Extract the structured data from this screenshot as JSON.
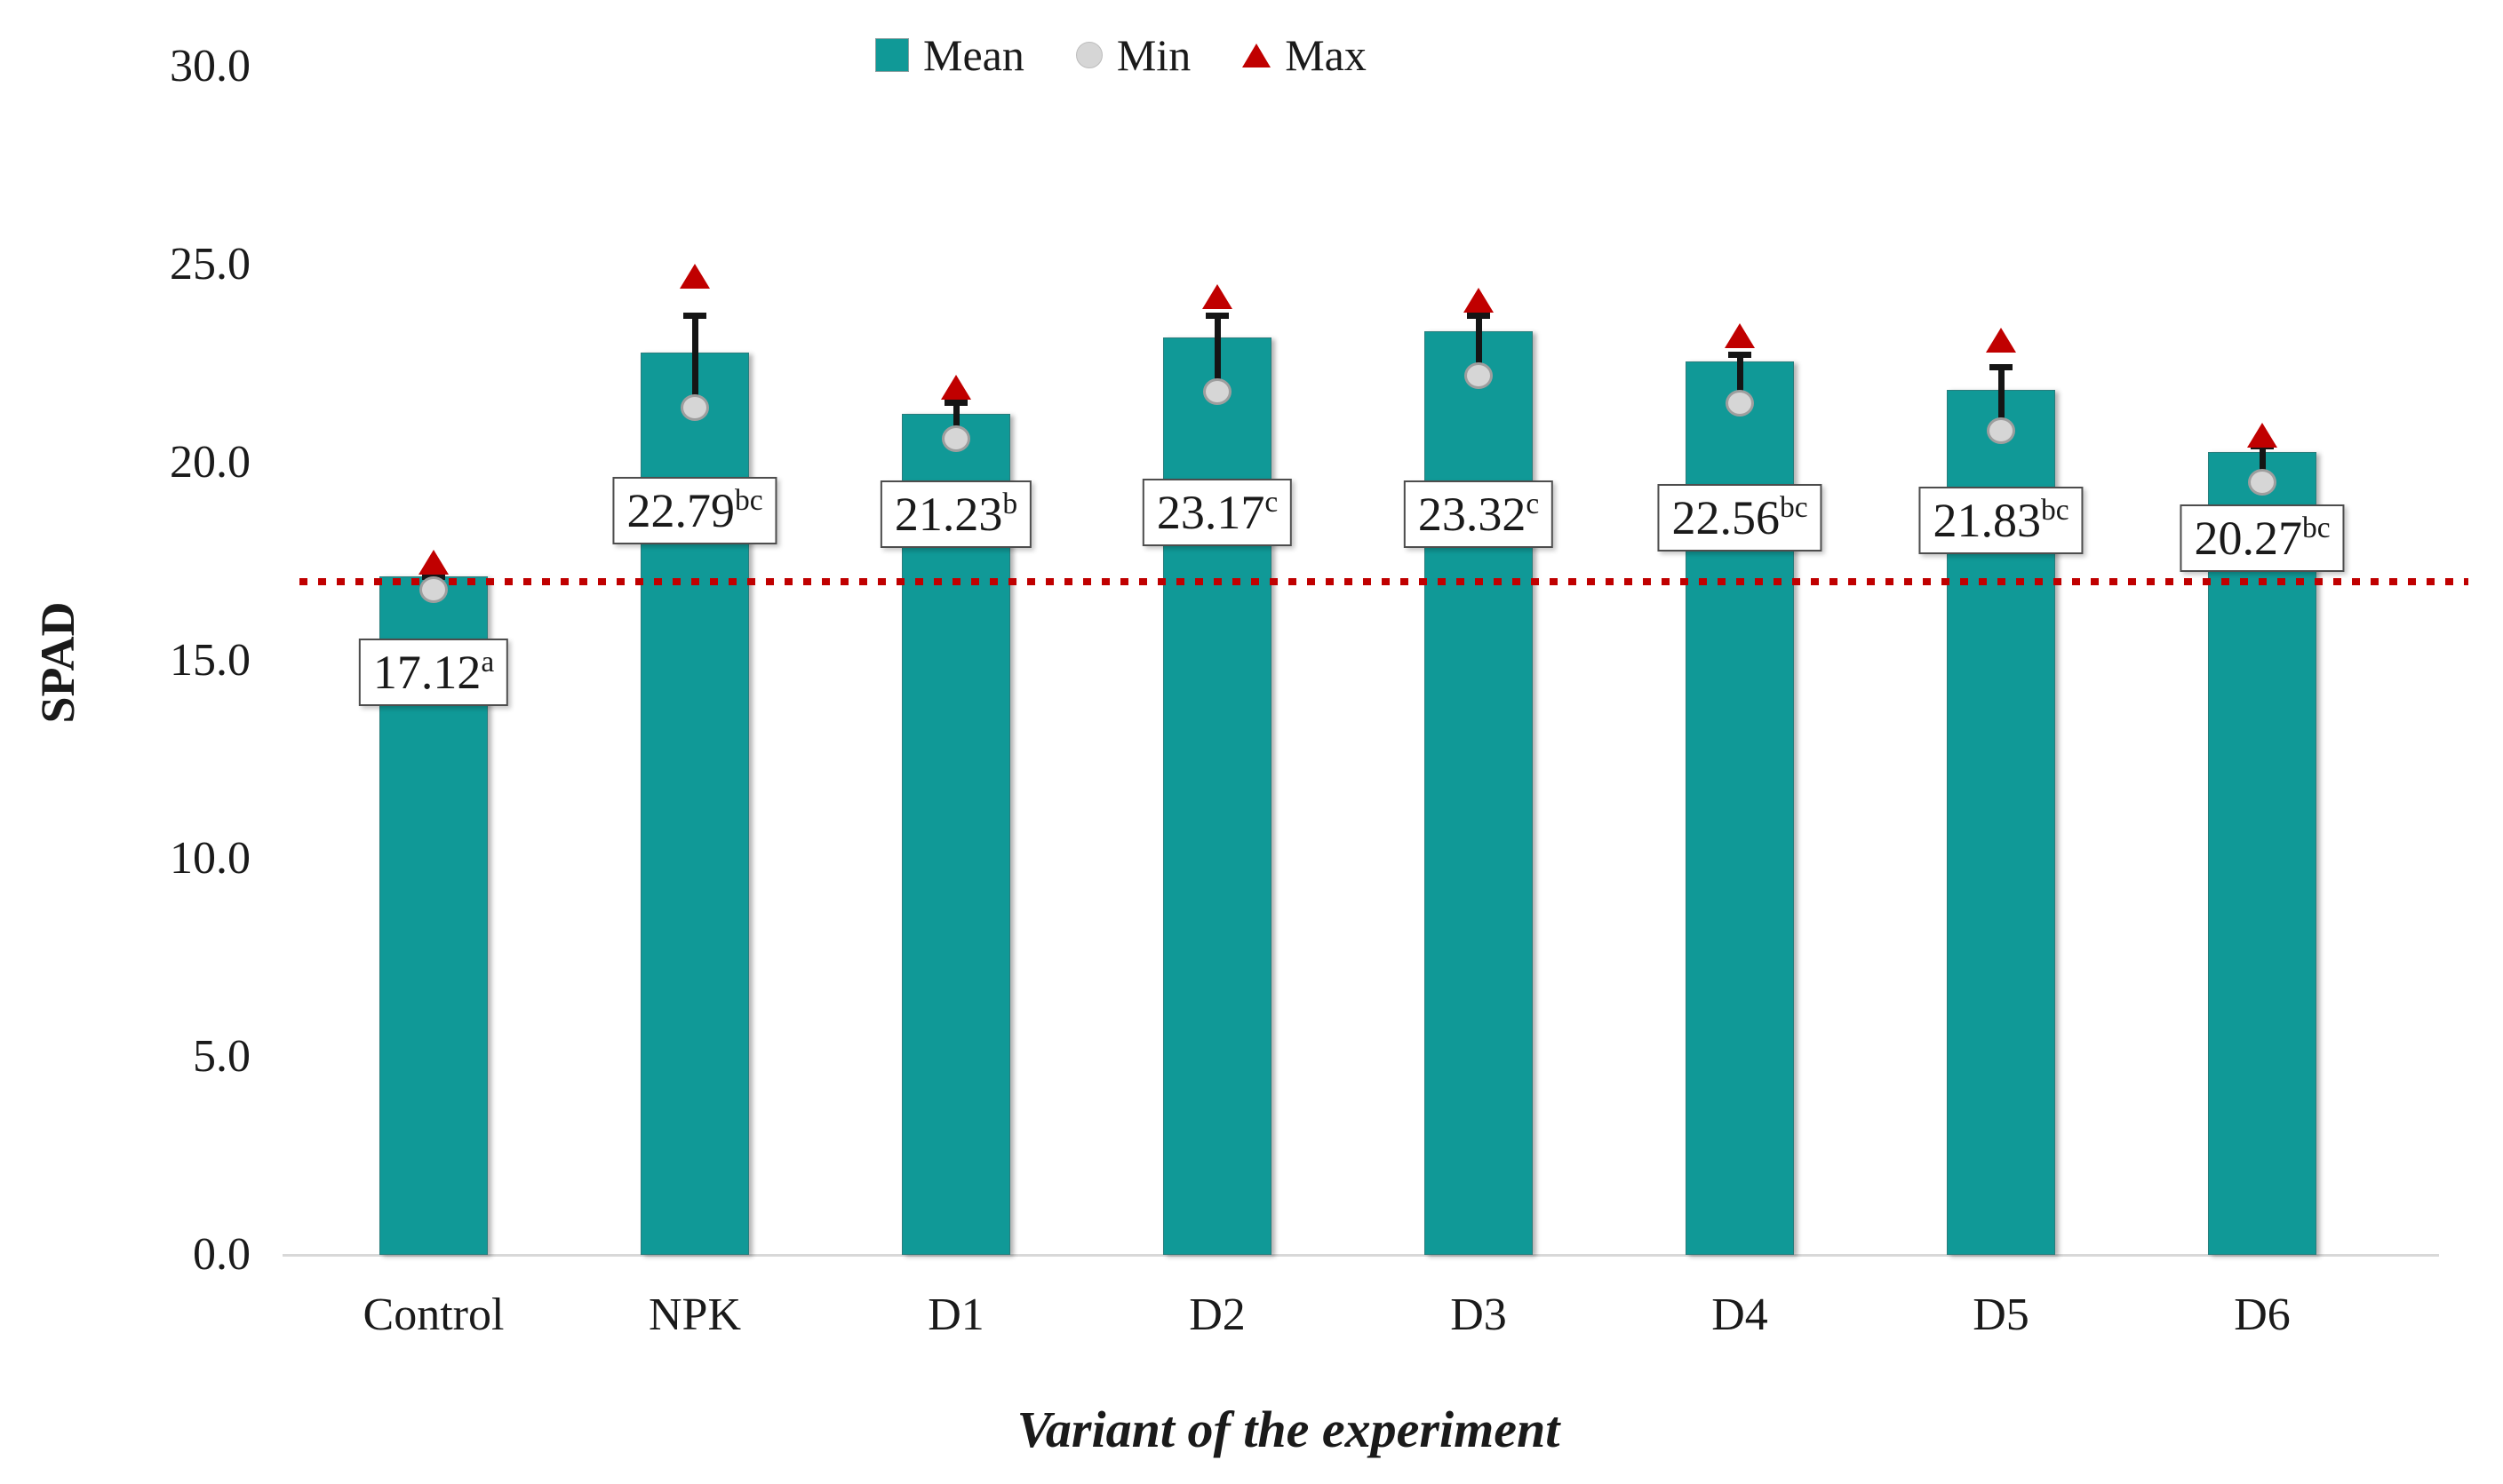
{
  "legend": {
    "items": [
      {
        "label": "Mean",
        "marker": "square-icon",
        "color": "#109997"
      },
      {
        "label": "Min",
        "marker": "circle-icon",
        "color": "#D6D6D6"
      },
      {
        "label": "Max",
        "marker": "triangle-icon",
        "color": "#C00000"
      }
    ]
  },
  "chart_data": {
    "type": "bar",
    "title": "",
    "xlabel": "Variant of the experiment",
    "ylabel": "SPAD",
    "categories": [
      "Control",
      "NPK",
      "D1",
      "D2",
      "D3",
      "D4",
      "D5",
      "D6"
    ],
    "series": [
      {
        "name": "Mean",
        "values": [
          17.12,
          22.79,
          21.23,
          23.17,
          23.32,
          22.56,
          21.83,
          20.27
        ]
      },
      {
        "name": "Min",
        "values": [
          16.8,
          21.4,
          20.6,
          21.8,
          22.2,
          21.5,
          20.8,
          19.5
        ]
      },
      {
        "name": "Max",
        "values": [
          17.5,
          24.7,
          21.9,
          24.2,
          24.1,
          23.2,
          23.1,
          20.7
        ]
      }
    ],
    "error_bar_tops": [
      17.2,
      23.8,
      21.6,
      23.8,
      23.8,
      22.8,
      22.5,
      20.5
    ],
    "data_labels": [
      {
        "value": "17.12",
        "sup": "a"
      },
      {
        "value": "22.79",
        "sup": "bc"
      },
      {
        "value": "21.23",
        "sup": "b"
      },
      {
        "value": "23.17",
        "sup": "c"
      },
      {
        "value": "23.32",
        "sup": "c"
      },
      {
        "value": "22.56",
        "sup": "bc"
      },
      {
        "value": "21.83",
        "sup": "bc"
      },
      {
        "value": "20.27",
        "sup": "bc"
      }
    ],
    "label_anchor_values": [
      14.7,
      18.8,
      18.7,
      18.75,
      18.7,
      18.6,
      18.55,
      18.1
    ],
    "reference_line_value": 17.0,
    "ylim": [
      0,
      30
    ],
    "y_tick_values": [
      0,
      5,
      10,
      15,
      20,
      25,
      30
    ],
    "y_tick_labels": [
      "0.0",
      "5.0",
      "10.0",
      "15.0",
      "20.0",
      "25.0",
      "30.0"
    ],
    "grid": false,
    "legend_position": "top",
    "colors": {
      "mean": "#109997",
      "min_fill": "#D6D6D6",
      "min_stroke": "#9E9E9E",
      "max": "#C00000",
      "ref_line": "#C00000",
      "error_bar": "#151515",
      "axis_line": "#d8d8d8",
      "text": "#1a1a1a"
    }
  }
}
